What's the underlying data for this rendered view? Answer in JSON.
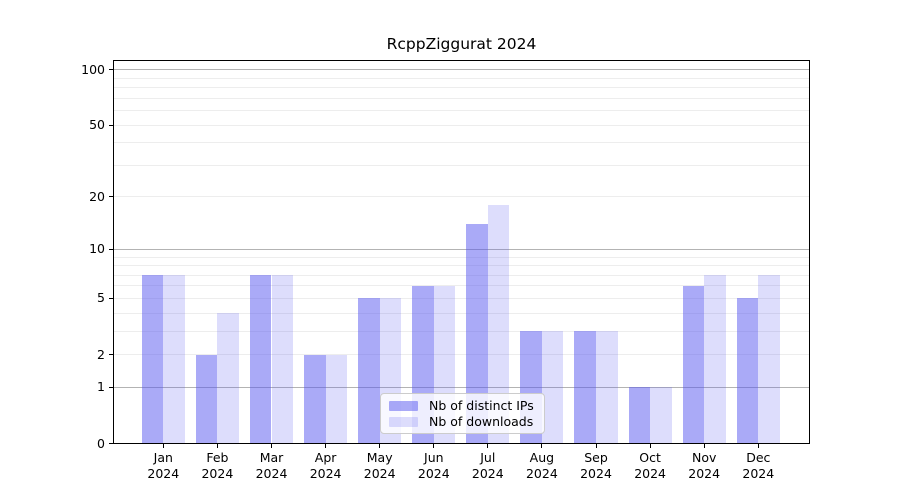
{
  "title": "RcppZiggurat 2024",
  "colors": {
    "ips_bar": "rgba(85,85,240,0.5)",
    "downloads_bar": "rgba(85,85,240,0.2)",
    "major_grid": "#b3b3b3",
    "minor_grid": "#ededed",
    "axis": "#000000",
    "legend_bg": "rgba(255,255,255,0.8)",
    "legend_border": "#cccccc"
  },
  "chart_data": {
    "type": "bar",
    "title": "RcppZiggurat 2024",
    "categories": [
      "Jan",
      "Feb",
      "Mar",
      "Apr",
      "May",
      "Jun",
      "Jul",
      "Aug",
      "Sep",
      "Oct",
      "Nov",
      "Dec"
    ],
    "year": "2024",
    "series": [
      {
        "name": "Nb of distinct IPs",
        "values": [
          7,
          2,
          7,
          2,
          5,
          6,
          14,
          3,
          3,
          1,
          6,
          5
        ]
      },
      {
        "name": "Nb of downloads",
        "values": [
          7,
          4,
          7,
          2,
          5,
          6,
          18,
          3,
          3,
          1,
          7,
          7
        ]
      }
    ],
    "xlabel": "",
    "ylabel": "",
    "y_ticks": [
      0,
      1,
      2,
      5,
      10,
      20,
      50,
      100
    ],
    "y_scale": "log10(1+y)",
    "ylim": [
      0,
      113
    ],
    "grid": "on",
    "grid_major_at": [
      1,
      10,
      100
    ],
    "grid_minor_at": [
      2,
      3,
      4,
      5,
      6,
      7,
      8,
      9,
      20,
      30,
      40,
      50,
      60,
      70,
      80,
      90
    ],
    "legend_position": "lower center"
  }
}
